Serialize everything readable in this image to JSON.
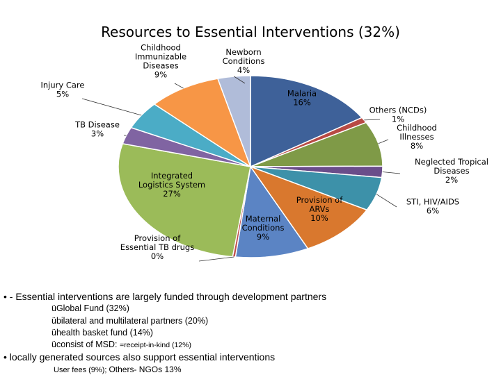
{
  "chart_data": {
    "type": "pie",
    "title": "Resources to Essential Interventions (32%)",
    "slices": [
      {
        "label": "Malaria",
        "value": 16,
        "display": "16%",
        "color": "#3e6199"
      },
      {
        "label": "Others (NCDs)",
        "value": 1,
        "display": "1%",
        "color": "#b84a44"
      },
      {
        "label": "Childhood Illnesses",
        "value": 8,
        "display": "8%",
        "color": "#7f9a47"
      },
      {
        "label": "Neglected Tropical Diseases",
        "value": 2,
        "display": "2%",
        "color": "#6a4d8a"
      },
      {
        "label": "STI, HIV/AIDS",
        "value": 6,
        "display": "6%",
        "color": "#3d91a9"
      },
      {
        "label": "Provision of ARVs",
        "value": 10,
        "display": "10%",
        "color": "#d9782e"
      },
      {
        "label": "Maternal Conditions",
        "value": 9,
        "display": "9%",
        "color": "#5b84c4"
      },
      {
        "label": "Provision of Essential TB drugs",
        "value": 0,
        "display": "0%",
        "color": "#c0504d"
      },
      {
        "label": "Integrated Logistics System",
        "value": 27,
        "display": "27%",
        "color": "#9bbb59"
      },
      {
        "label": "TB Disease",
        "value": 3,
        "display": "3%",
        "color": "#8064a2"
      },
      {
        "label": "Injury Care",
        "value": 5,
        "display": "5%",
        "color": "#4bacc6"
      },
      {
        "label": "Childhood Immunizable Diseases",
        "value": 9,
        "display": "9%",
        "color": "#f79646"
      },
      {
        "label": "Newborn Conditions",
        "value": 4,
        "display": "4%",
        "color": "#b0bcd9"
      }
    ]
  },
  "labels": [
    {
      "lines": [
        "Malaria",
        "16%"
      ],
      "inside": true
    },
    {
      "lines": [
        "Others (NCDs)",
        "1%"
      ],
      "inside": false
    },
    {
      "lines": [
        "Childhood",
        "Illnesses",
        "8%"
      ],
      "inside": false
    },
    {
      "lines": [
        "Neglected Tropical",
        "Diseases",
        "2%"
      ],
      "inside": false
    },
    {
      "lines": [
        "STI, HIV/AIDS",
        "6%"
      ],
      "inside": false
    },
    {
      "lines": [
        "Provision of",
        "ARVs",
        "10%"
      ],
      "inside": true
    },
    {
      "lines": [
        "Maternal",
        "Conditions",
        "9%"
      ],
      "inside": true
    },
    {
      "lines": [
        "Provision of",
        "Essential TB drugs",
        "0%"
      ],
      "inside": false
    },
    {
      "lines": [
        "Integrated",
        "Logistics System",
        "27%"
      ],
      "inside": true
    },
    {
      "lines": [
        "TB Disease",
        "3%"
      ],
      "inside": false
    },
    {
      "lines": [
        "Injury Care",
        "5%"
      ],
      "inside": false
    },
    {
      "lines": [
        "Childhood",
        "Immunizable",
        "Diseases",
        "9%"
      ],
      "inside": false
    },
    {
      "lines": [
        "Newborn",
        "Conditions",
        "4%"
      ],
      "inside": false
    }
  ],
  "notes": {
    "bullet_marker": "•",
    "main_bullet": "- Essential interventions are largely funded through development partners",
    "check_mark": "ü",
    "sub_items": [
      "Global Fund (32%)",
      "bilateral and multilateral partners (20%)",
      "health basket fund (14%)",
      "consist of  MSD: "
    ],
    "sub_item_suffix": "=receipt-in-kind (12%)",
    "second_bullet": "• locally generated sources also support essential interventions",
    "third_line_a": "User fees (9%); ",
    "third_line_b": "Others- NGOs 13%"
  }
}
